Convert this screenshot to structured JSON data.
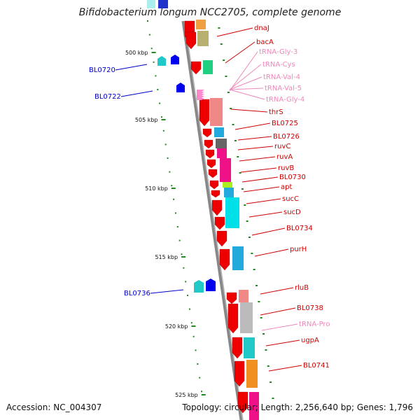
{
  "title": "Bifidobacterium longum NCC2705, complete genome",
  "footer": {
    "accession": "Accession: NC_004307",
    "summary": "Topology: circular; Length: 2,256,640 bp; Genes: 1,796"
  },
  "scale_labels": [
    "500 kbp",
    "505 kbp",
    "510 kbp",
    "515 kbp",
    "520 kbp",
    "525 kbp"
  ],
  "colors": {
    "gene_label": "#cc0000",
    "trna_label": "#ee88bb",
    "other_label": "#0000cc",
    "backbone": "#888888",
    "tick": "#228822"
  },
  "left_labels": [
    "BL0720",
    "BL0722",
    "BL0736"
  ],
  "right_labels": [
    {
      "text": "dnaJ",
      "kind": "gene"
    },
    {
      "text": "bacA",
      "kind": "gene"
    },
    {
      "text": "tRNA-Gly-3",
      "kind": "trna"
    },
    {
      "text": "tRNA-Cys",
      "kind": "trna"
    },
    {
      "text": "tRNA-Val-4",
      "kind": "trna"
    },
    {
      "text": "tRNA-Val-5",
      "kind": "trna"
    },
    {
      "text": "tRNA-Gly-4",
      "kind": "trna"
    },
    {
      "text": "thrS",
      "kind": "gene"
    },
    {
      "text": "BL0725",
      "kind": "gene"
    },
    {
      "text": "BL0726",
      "kind": "gene"
    },
    {
      "text": "ruvC",
      "kind": "gene"
    },
    {
      "text": "ruvA",
      "kind": "gene"
    },
    {
      "text": "ruvB",
      "kind": "gene"
    },
    {
      "text": "BL0730",
      "kind": "gene"
    },
    {
      "text": "apt",
      "kind": "gene"
    },
    {
      "text": "sucC",
      "kind": "gene"
    },
    {
      "text": "sucD",
      "kind": "gene"
    },
    {
      "text": "BL0734",
      "kind": "gene"
    },
    {
      "text": "purH",
      "kind": "gene"
    },
    {
      "text": "rluB",
      "kind": "gene"
    },
    {
      "text": "BL0738",
      "kind": "gene"
    },
    {
      "text": "tRNA-Pro",
      "kind": "trna"
    },
    {
      "text": "ugpA",
      "kind": "gene"
    },
    {
      "text": "BL0741",
      "kind": "gene"
    }
  ]
}
